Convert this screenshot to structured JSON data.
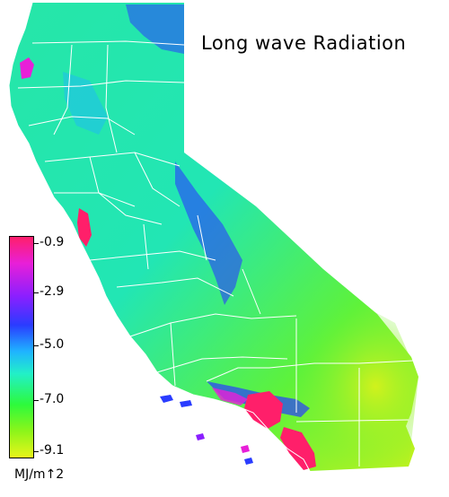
{
  "title": "Long wave Radiation",
  "legend": {
    "ticks": [
      "-0.9",
      "-2.9",
      "-5.0",
      "-7.0",
      "-9.1"
    ],
    "units": "MJ/m↑2",
    "colors": [
      "#ff1f6a",
      "#e81fd8",
      "#8a1fff",
      "#2a3cff",
      "#1fb4ff",
      "#22f0c8",
      "#2dfa3c",
      "#8cf51a",
      "#e8f51a"
    ]
  },
  "map": {
    "region": "California",
    "background_color": "#ffffff",
    "boundary_color": "#ffffff"
  }
}
